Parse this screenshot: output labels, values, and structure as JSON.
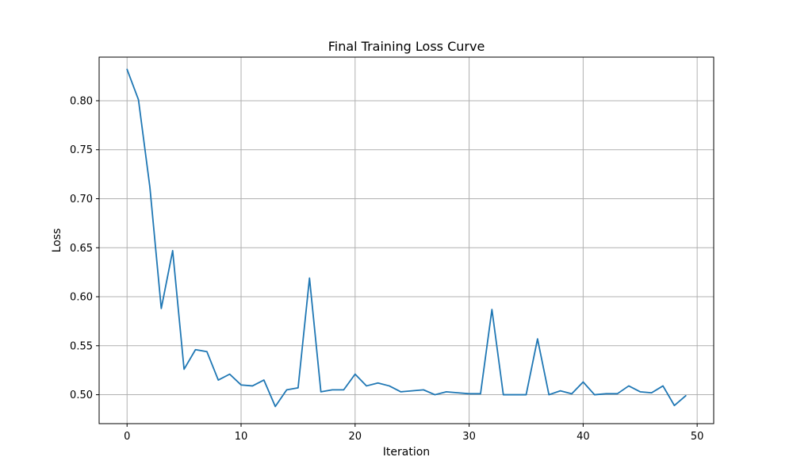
{
  "chart_data": {
    "type": "line",
    "title": "Final Training Loss Curve",
    "xlabel": "Iteration",
    "ylabel": "Loss",
    "xlim": [
      -2.45,
      51.45
    ],
    "ylim": [
      0.4705,
      0.8445
    ],
    "xticks": [
      0,
      10,
      20,
      30,
      40,
      50
    ],
    "yticks": [
      0.5,
      0.55,
      0.6,
      0.65,
      0.7,
      0.75,
      0.8
    ],
    "ytick_labels": [
      "0.50",
      "0.55",
      "0.60",
      "0.65",
      "0.70",
      "0.75",
      "0.80"
    ],
    "grid": true,
    "line_color": "#1f77b4",
    "grid_color": "#b0b0b0",
    "series": [
      {
        "x": [
          0,
          1,
          2,
          3,
          4,
          5,
          6,
          7,
          8,
          9,
          10,
          11,
          12,
          13,
          14,
          15,
          16,
          17,
          18,
          19,
          20,
          21,
          22,
          23,
          24,
          25,
          26,
          27,
          28,
          29,
          30,
          31,
          32,
          33,
          34,
          35,
          36,
          37,
          38,
          39,
          40,
          41,
          42,
          43,
          44,
          45,
          46,
          47,
          48,
          49
        ],
        "values": [
          0.832,
          0.801,
          0.712,
          0.588,
          0.647,
          0.526,
          0.546,
          0.544,
          0.515,
          0.521,
          0.51,
          0.509,
          0.515,
          0.488,
          0.505,
          0.507,
          0.619,
          0.503,
          0.505,
          0.505,
          0.521,
          0.509,
          0.512,
          0.509,
          0.503,
          0.504,
          0.505,
          0.5,
          0.503,
          0.502,
          0.501,
          0.501,
          0.587,
          0.5,
          0.5,
          0.5,
          0.557,
          0.5,
          0.504,
          0.501,
          0.513,
          0.5,
          0.501,
          0.501,
          0.509,
          0.503,
          0.502,
          0.509,
          0.489,
          0.499
        ]
      }
    ]
  }
}
